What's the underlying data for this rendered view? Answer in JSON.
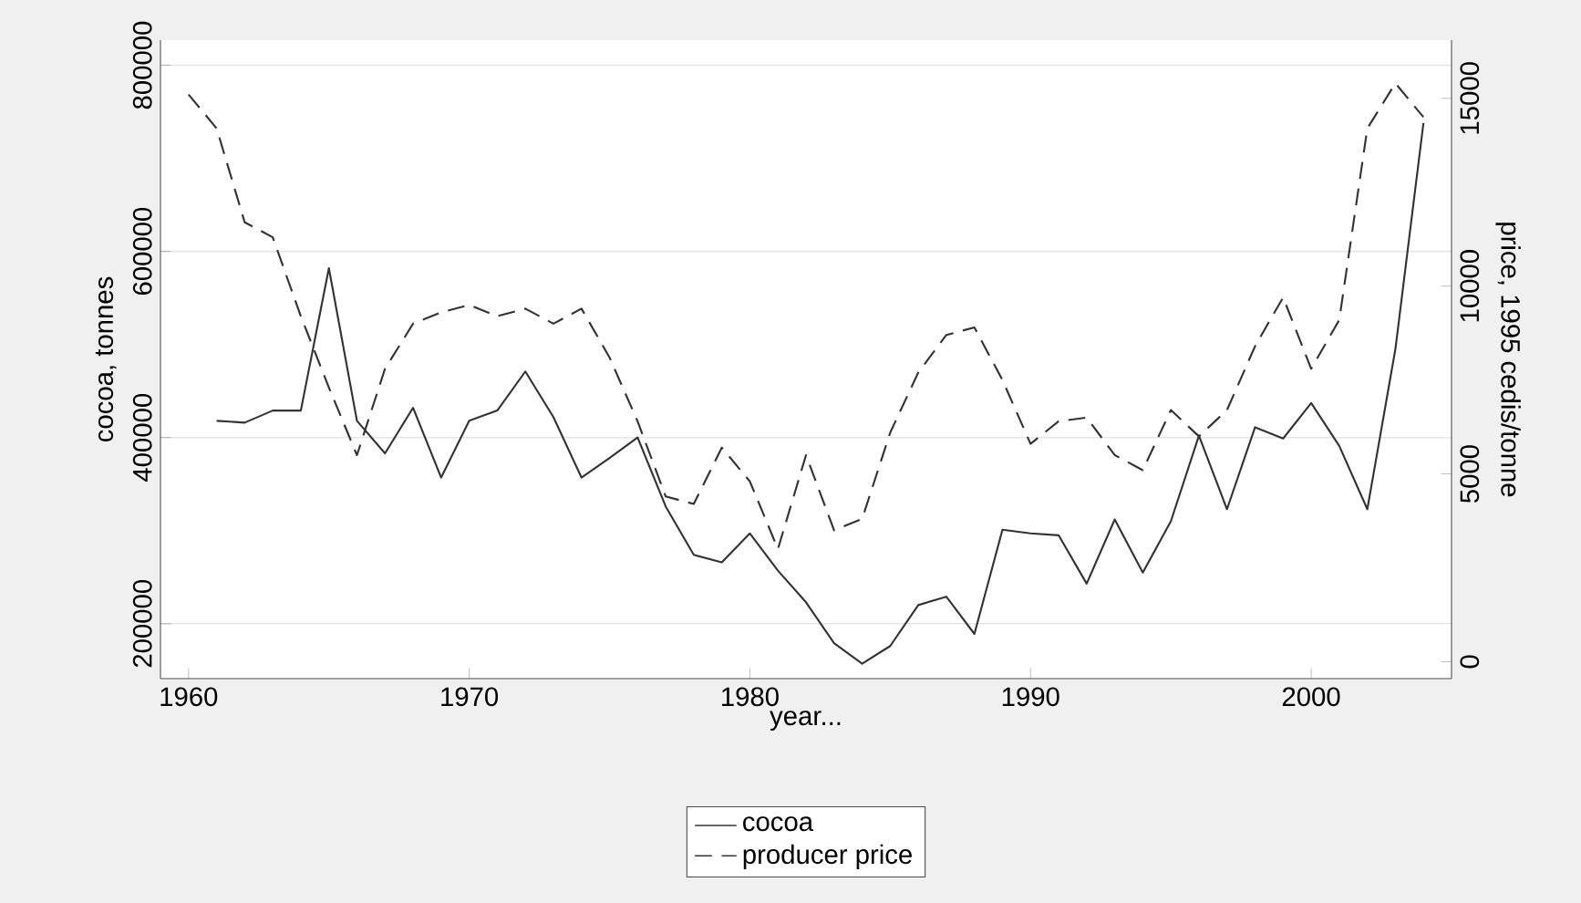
{
  "chart_data": {
    "type": "line",
    "xlabel": "year...",
    "ylabel": "cocoa, tonnes",
    "y2label": "price, 1995 cedis/tonne",
    "x": [
      1960,
      1961,
      1962,
      1963,
      1964,
      1965,
      1966,
      1967,
      1968,
      1969,
      1970,
      1971,
      1972,
      1973,
      1974,
      1975,
      1976,
      1977,
      1978,
      1979,
      1980,
      1981,
      1982,
      1983,
      1984,
      1985,
      1986,
      1987,
      1988,
      1989,
      1990,
      1991,
      1992,
      1993,
      1994,
      1995,
      1996,
      1997,
      1998,
      1999,
      2000,
      2001,
      2002,
      2003,
      2004
    ],
    "series": [
      {
        "name": "cocoa",
        "color": "#333333",
        "line_style": "solid",
        "values": [
          null,
          418000,
          416000,
          429000,
          429000,
          582000,
          418000,
          383000,
          432000,
          357000,
          418000,
          429000,
          471000,
          422000,
          357000,
          378000,
          400000,
          326000,
          274000,
          266000,
          297000,
          257000,
          223000,
          179000,
          157000,
          176000,
          220000,
          229000,
          189000,
          301000,
          297000,
          295000,
          243000,
          312000,
          255000,
          310000,
          402000,
          323000,
          411000,
          399000,
          437000,
          391000,
          323000,
          495000,
          738000
        ]
      },
      {
        "name": "producer price",
        "color": "#333333",
        "line_style": "dashed",
        "axis": "y2",
        "values": [
          15100,
          14200,
          11700,
          11300,
          9200,
          7300,
          5500,
          7800,
          9000,
          9300,
          9500,
          9200,
          9400,
          9000,
          9400,
          8100,
          6400,
          4400,
          4200,
          5700,
          4800,
          3000,
          5500,
          3500,
          3800,
          6100,
          7700,
          8700,
          8900,
          7500,
          5800,
          6400,
          6500,
          5500,
          5100,
          6700,
          6000,
          6700,
          8400,
          9700,
          7800,
          9100,
          14200,
          15400,
          14500
        ]
      }
    ],
    "xlim": [
      1959,
      2005
    ],
    "xticks": [
      1960,
      1970,
      1980,
      1990,
      2000
    ],
    "ylim": [
      141000,
      827000
    ],
    "yticks": [
      200000,
      400000,
      600000,
      800000
    ],
    "y2lim": [
      -450,
      16550
    ],
    "y2ticks": [
      0,
      5000,
      10000,
      15000
    ],
    "grid": "y",
    "legend": "bottom"
  }
}
